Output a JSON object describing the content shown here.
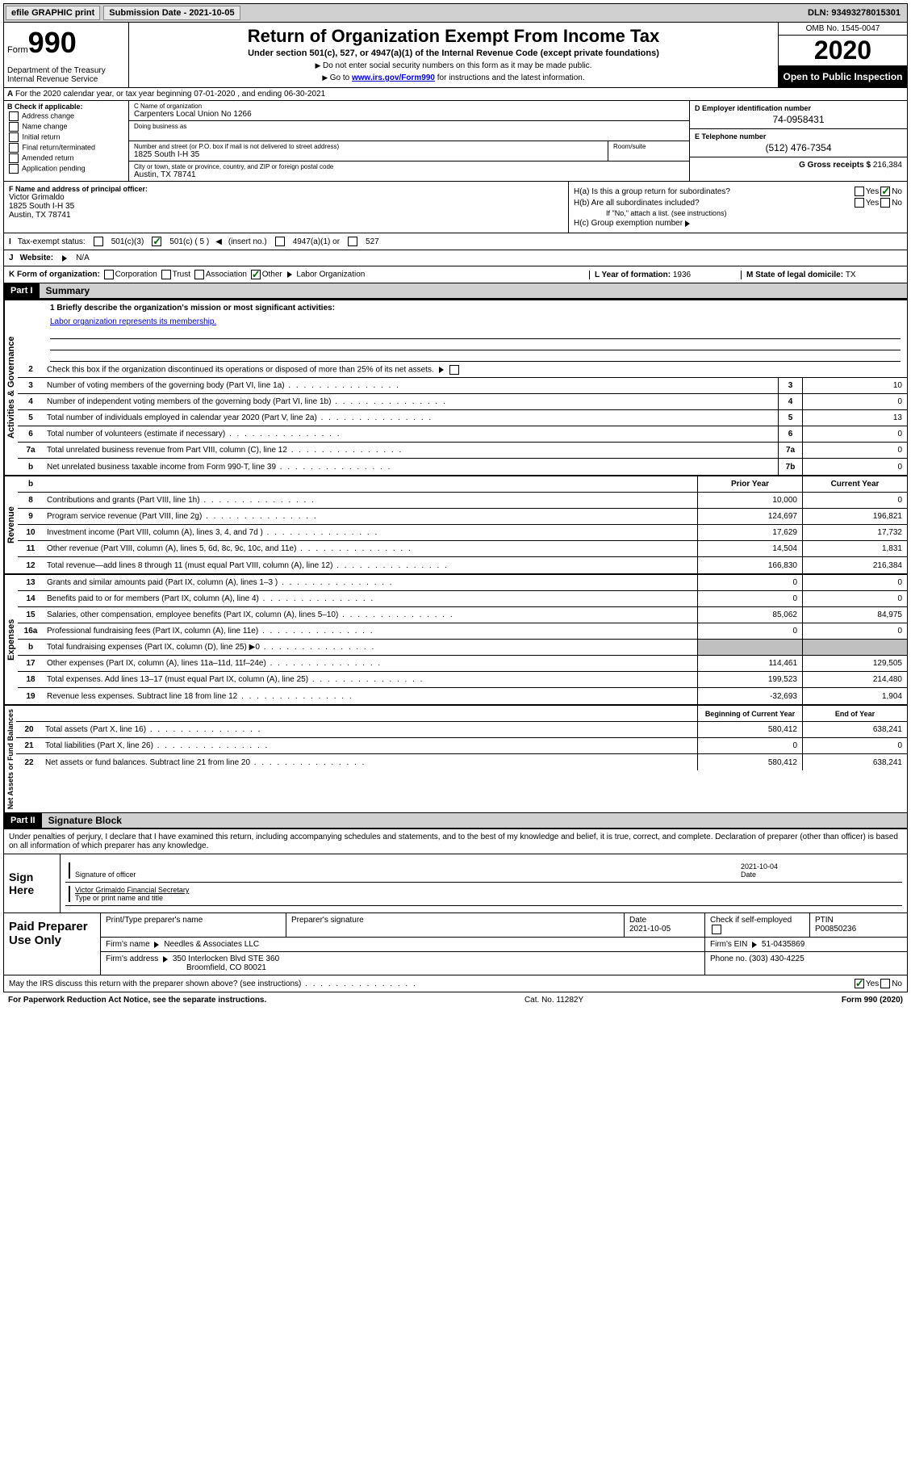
{
  "topbar": {
    "efile": "efile GRAPHIC print",
    "submission_label": "Submission Date - 2021-10-05",
    "dln": "DLN: 93493278015301"
  },
  "header": {
    "form_word": "Form",
    "form_num": "990",
    "title": "Return of Organization Exempt From Income Tax",
    "subtitle": "Under section 501(c), 527, or 4947(a)(1) of the Internal Revenue Code (except private foundations)",
    "note1": "Do not enter social security numbers on this form as it may be made public.",
    "note2_pre": "Go to ",
    "note2_link": "www.irs.gov/Form990",
    "note2_post": " for instructions and the latest information.",
    "dept": "Department of the Treasury\nInternal Revenue Service",
    "omb": "OMB No. 1545-0047",
    "year": "2020",
    "inspection": "Open to Public Inspection"
  },
  "row_a": "For the 2020 calendar year, or tax year beginning 07-01-2020    , and ending 06-30-2021",
  "col_b": {
    "label": "B Check if applicable:",
    "items": [
      "Address change",
      "Name change",
      "Initial return",
      "Final return/terminated",
      "Amended return",
      "Application pending"
    ]
  },
  "col_c": {
    "name_label": "C Name of organization",
    "name": "Carpenters Local Union No 1266",
    "dba_label": "Doing business as",
    "addr_label": "Number and street (or P.O. box if mail is not delivered to street address)",
    "room_label": "Room/suite",
    "addr": "1825 South I-H 35",
    "city_label": "City or town, state or province, country, and ZIP or foreign postal code",
    "city": "Austin, TX  78741"
  },
  "col_d": {
    "ein_label": "D Employer identification number",
    "ein": "74-0958431",
    "phone_label": "E Telephone number",
    "phone": "(512) 476-7354",
    "gross_label": "G Gross receipts $ ",
    "gross": "216,384"
  },
  "col_f": {
    "label": "F  Name and address of principal officer:",
    "name": "Victor Grimaldo",
    "addr1": "1825 South I-H 35",
    "addr2": "Austin, TX  78741"
  },
  "col_h": {
    "a_label": "H(a)  Is this a group return for subordinates?",
    "b_label": "H(b)  Are all subordinates included?",
    "b_note": "If \"No,\" attach a list. (see instructions)",
    "c_label": "H(c)  Group exemption number",
    "yes": "Yes",
    "no": "No"
  },
  "row_i": {
    "label": "Tax-exempt status:",
    "opts": [
      "501(c)(3)",
      "501(c) ( 5 )",
      "(insert no.)",
      "4947(a)(1) or",
      "527"
    ]
  },
  "row_j": {
    "label": "Website:",
    "val": "N/A"
  },
  "row_k": {
    "label": "K Form of organization:",
    "opts": [
      "Corporation",
      "Trust",
      "Association",
      "Other"
    ],
    "other_val": "Labor Organization",
    "l_label": "L Year of formation: ",
    "l_val": "1936",
    "m_label": "M State of legal domicile: ",
    "m_val": "TX"
  },
  "part1": {
    "label": "Part I",
    "title": "Summary",
    "sections": {
      "governance": {
        "label": "Activities & Governance",
        "mission_label": "1  Briefly describe the organization's mission or most significant activities:",
        "mission": "Labor organization represents its membership.",
        "line2": "Check this box          if the organization discontinued its operations or disposed of more than 25% of its net assets.",
        "lines": [
          {
            "n": "3",
            "t": "Number of voting members of the governing body (Part VI, line 1a)",
            "box": "3",
            "v": "10"
          },
          {
            "n": "4",
            "t": "Number of independent voting members of the governing body (Part VI, line 1b)",
            "box": "4",
            "v": "0"
          },
          {
            "n": "5",
            "t": "Total number of individuals employed in calendar year 2020 (Part V, line 2a)",
            "box": "5",
            "v": "13"
          },
          {
            "n": "6",
            "t": "Total number of volunteers (estimate if necessary)",
            "box": "6",
            "v": "0"
          },
          {
            "n": "7a",
            "t": "Total unrelated business revenue from Part VIII, column (C), line 12",
            "box": "7a",
            "v": "0"
          },
          {
            "n": "b",
            "t": "Net unrelated business taxable income from Form 990-T, line 39",
            "box": "7b",
            "v": "0"
          }
        ]
      },
      "revenue": {
        "label": "Revenue",
        "hdr_prior": "Prior Year",
        "hdr_current": "Current Year",
        "lines": [
          {
            "n": "8",
            "t": "Contributions and grants (Part VIII, line 1h)",
            "p": "10,000",
            "c": "0"
          },
          {
            "n": "9",
            "t": "Program service revenue (Part VIII, line 2g)",
            "p": "124,697",
            "c": "196,821"
          },
          {
            "n": "10",
            "t": "Investment income (Part VIII, column (A), lines 3, 4, and 7d )",
            "p": "17,629",
            "c": "17,732"
          },
          {
            "n": "11",
            "t": "Other revenue (Part VIII, column (A), lines 5, 6d, 8c, 9c, 10c, and 11e)",
            "p": "14,504",
            "c": "1,831"
          },
          {
            "n": "12",
            "t": "Total revenue—add lines 8 through 11 (must equal Part VIII, column (A), line 12)",
            "p": "166,830",
            "c": "216,384"
          }
        ]
      },
      "expenses": {
        "label": "Expenses",
        "lines": [
          {
            "n": "13",
            "t": "Grants and similar amounts paid (Part IX, column (A), lines 1–3 )",
            "p": "0",
            "c": "0"
          },
          {
            "n": "14",
            "t": "Benefits paid to or for members (Part IX, column (A), line 4)",
            "p": "0",
            "c": "0"
          },
          {
            "n": "15",
            "t": "Salaries, other compensation, employee benefits (Part IX, column (A), lines 5–10)",
            "p": "85,062",
            "c": "84,975"
          },
          {
            "n": "16a",
            "t": "Professional fundraising fees (Part IX, column (A), line 11e)",
            "p": "0",
            "c": "0"
          },
          {
            "n": "b",
            "t": "Total fundraising expenses (Part IX, column (D), line 25)  ▶0",
            "p": "",
            "c": "",
            "shaded": true
          },
          {
            "n": "17",
            "t": "Other expenses (Part IX, column (A), lines 11a–11d, 11f–24e)",
            "p": "114,461",
            "c": "129,505"
          },
          {
            "n": "18",
            "t": "Total expenses. Add lines 13–17 (must equal Part IX, column (A), line 25)",
            "p": "199,523",
            "c": "214,480"
          },
          {
            "n": "19",
            "t": "Revenue less expenses. Subtract line 18 from line 12",
            "p": "-32,693",
            "c": "1,904"
          }
        ]
      },
      "netassets": {
        "label": "Net Assets or Fund Balances",
        "hdr_prior": "Beginning of Current Year",
        "hdr_current": "End of Year",
        "lines": [
          {
            "n": "20",
            "t": "Total assets (Part X, line 16)",
            "p": "580,412",
            "c": "638,241"
          },
          {
            "n": "21",
            "t": "Total liabilities (Part X, line 26)",
            "p": "0",
            "c": "0"
          },
          {
            "n": "22",
            "t": "Net assets or fund balances. Subtract line 21 from line 20",
            "p": "580,412",
            "c": "638,241"
          }
        ]
      }
    }
  },
  "part2": {
    "label": "Part II",
    "title": "Signature Block",
    "declaration": "Under penalties of perjury, I declare that I have examined this return, including accompanying schedules and statements, and to the best of my knowledge and belief, it is true, correct, and complete. Declaration of preparer (other than officer) is based on all information of which preparer has any knowledge."
  },
  "sign": {
    "label": "Sign Here",
    "sig_label": "Signature of officer",
    "date_label": "Date",
    "date": "2021-10-04",
    "name": "Victor Grimaldo  Financial Secretary",
    "name_label": "Type or print name and title"
  },
  "prep": {
    "label": "Paid Preparer Use Only",
    "h_name": "Print/Type preparer's name",
    "h_sig": "Preparer's signature",
    "h_date": "Date",
    "date": "2021-10-05",
    "h_check": "Check         if self-employed",
    "h_ptin": "PTIN",
    "ptin": "P00850236",
    "firm_label": "Firm's name     ",
    "firm": "Needles & Associates LLC",
    "ein_label": "Firm's EIN ",
    "ein": "51-0435869",
    "addr_label": "Firm's address ",
    "addr1": "350 Interlocken Blvd STE 360",
    "addr2": "Broomfield, CO  80021",
    "phone_label": "Phone no. ",
    "phone": "(303) 430-4225"
  },
  "bottom": {
    "q": "May the IRS discuss this return with the preparer shown above? (see instructions)",
    "yes": "Yes",
    "no": "No"
  },
  "footer": {
    "left": "For Paperwork Reduction Act Notice, see the separate instructions.",
    "mid": "Cat. No. 11282Y",
    "right": "Form 990 (2020)"
  },
  "colors": {
    "link": "#0000cc",
    "check": "#006600",
    "shade": "#c0c0c0"
  }
}
